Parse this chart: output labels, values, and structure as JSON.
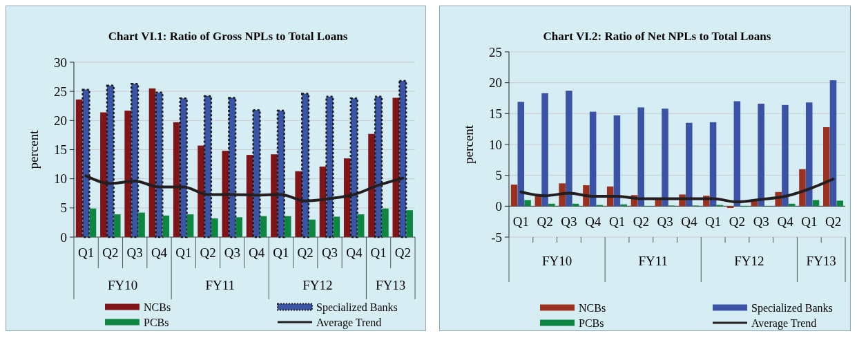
{
  "chart_data": [
    {
      "type": "bar",
      "title": "Chart VI.1:  Ratio of Gross NPLs to Total Loans",
      "ylabel": "percent",
      "categories": [
        "Q1",
        "Q2",
        "Q3",
        "Q4",
        "Q1",
        "Q2",
        "Q3",
        "Q4",
        "Q1",
        "Q2",
        "Q3",
        "Q4",
        "Q1",
        "Q2"
      ],
      "annotations": [
        "FY10",
        "FY11",
        "FY12",
        "FY13"
      ],
      "series": [
        {
          "name": "NCBs",
          "color": "#7f1518",
          "values": [
            23.6,
            21.4,
            21.7,
            25.5,
            19.7,
            15.7,
            14.8,
            14.1,
            14.2,
            11.3,
            12.1,
            13.5,
            17.7,
            23.9
          ]
        },
        {
          "name": "Specialized Banks",
          "color": "#3a55a5",
          "line_style": "dotted",
          "values": [
            25.3,
            26.0,
            26.3,
            24.8,
            23.8,
            24.2,
            23.9,
            21.8,
            21.7,
            24.6,
            24.1,
            23.8,
            24.1,
            26.8
          ]
        },
        {
          "name": "PCBs",
          "color": "#0e8540",
          "values": [
            4.9,
            3.9,
            4.2,
            3.7,
            3.9,
            3.2,
            3.4,
            3.6,
            3.6,
            3.0,
            3.5,
            3.9,
            4.9,
            4.6
          ]
        },
        {
          "name": "Average Trend",
          "type": "line",
          "color": "#231f20",
          "values": [
            10.5,
            9.2,
            9.6,
            8.6,
            8.6,
            7.3,
            7.3,
            7.2,
            7.3,
            6.2,
            6.6,
            7.3,
            8.9,
            10.1
          ]
        }
      ],
      "ylim": [
        0,
        30
      ],
      "yticks": [
        0,
        5,
        10,
        15,
        20,
        25,
        30
      ],
      "grid": "y",
      "legend": "bottom"
    },
    {
      "type": "bar",
      "title": "Chart VI.2: Ratio of Net NPLs to Total Loans",
      "ylabel": "percent",
      "categories": [
        "Q1",
        "Q2",
        "Q3",
        "Q4",
        "Q1",
        "Q2",
        "Q3",
        "Q4",
        "Q1",
        "Q2",
        "Q3",
        "Q4",
        "Q1",
        "Q2"
      ],
      "annotations": [
        "FY10",
        "FY11",
        "FY12",
        "FY13"
      ],
      "series": [
        {
          "name": "NCBs",
          "color": "#9b3220",
          "values": [
            3.5,
            1.8,
            3.7,
            3.4,
            3.2,
            1.8,
            1.2,
            1.9,
            1.7,
            -0.3,
            0.8,
            2.3,
            6.0,
            12.8
          ]
        },
        {
          "name": "Specialized Banks",
          "color": "#3a53a4",
          "values": [
            16.9,
            18.3,
            18.7,
            15.3,
            14.7,
            16.0,
            15.8,
            13.5,
            13.6,
            17.0,
            16.6,
            16.4,
            16.8,
            20.4
          ]
        },
        {
          "name": "PCBs",
          "color": "#0e8540",
          "values": [
            1.0,
            0.4,
            0.4,
            0.2,
            0.3,
            0.0,
            0.1,
            0.1,
            0.2,
            -0.1,
            0.0,
            0.4,
            1.0,
            0.9
          ]
        },
        {
          "name": "Average Trend",
          "type": "line",
          "color": "#231f20",
          "values": [
            2.3,
            1.7,
            2.1,
            1.6,
            1.6,
            1.2,
            1.2,
            1.2,
            1.2,
            0.7,
            1.1,
            1.6,
            2.8,
            4.4
          ]
        }
      ],
      "ylim": [
        -5,
        25
      ],
      "yticks": [
        -5,
        0,
        5,
        10,
        15,
        20,
        25
      ],
      "grid": "y",
      "legend": "bottom"
    }
  ]
}
